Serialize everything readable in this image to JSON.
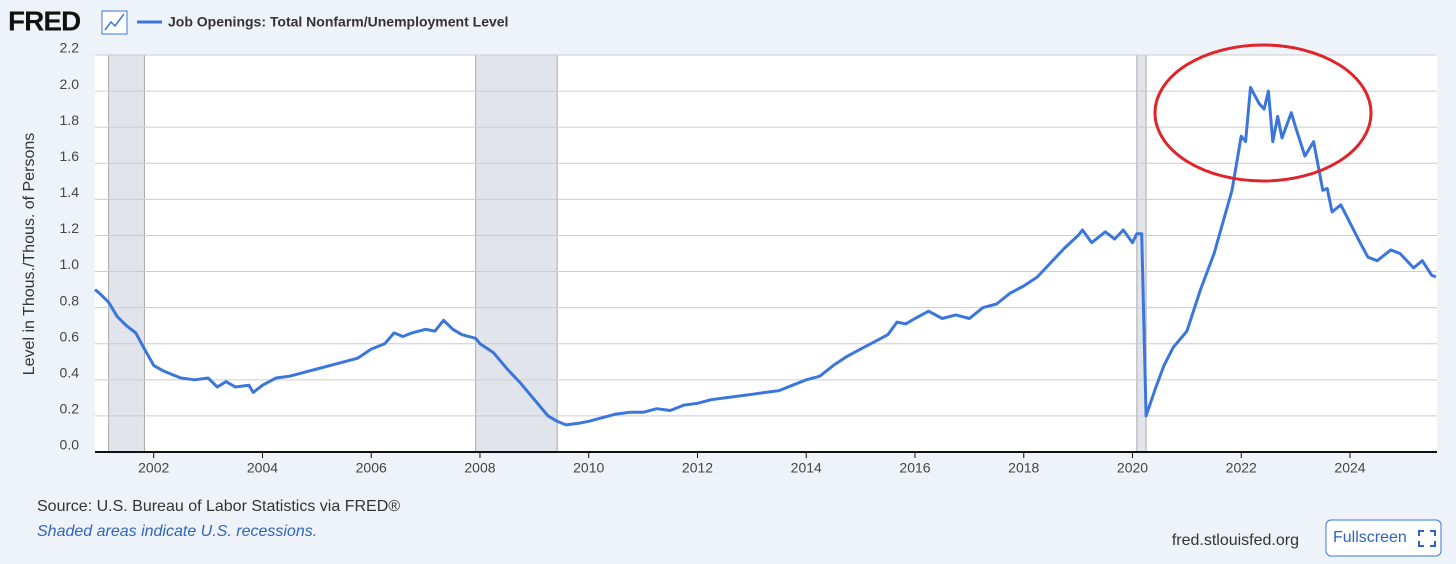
{
  "chart_data": {
    "type": "line",
    "logo": "FRED",
    "y_label": "Level in Thous./Thous. of Persons",
    "source": "Source: U.S. Bureau of Labor Statistics via FRED®",
    "note": "Shaded areas indicate U.S. recessions.",
    "site": "fred.stlouisfed.org",
    "button": "Fullscreen",
    "grid": true,
    "xlim": [
      2000.92,
      2025.6
    ],
    "ylim": [
      0,
      2.2
    ],
    "xticks": [
      2002,
      2004,
      2006,
      2008,
      2010,
      2012,
      2014,
      2016,
      2018,
      2020,
      2022,
      2024
    ],
    "yticks": [
      {
        "value": 0,
        "label": "0.0"
      },
      0.2,
      0.4,
      0.6,
      0.8,
      {
        "value": 1,
        "label": "1.0"
      },
      1.2,
      1.4,
      1.6,
      1.8,
      {
        "value": 2,
        "label": "2.0"
      },
      2.2
    ],
    "recessions": [
      [
        2001.17,
        2001.83
      ],
      [
        2007.92,
        2009.42
      ],
      [
        2020.08,
        2020.25
      ]
    ],
    "x": [
      2000.92,
      2001.0,
      2001.17,
      2001.33,
      2001.5,
      2001.67,
      2001.83,
      2002.0,
      2002.17,
      2002.33,
      2002.5,
      2002.75,
      2003.0,
      2003.17,
      2003.33,
      2003.5,
      2003.75,
      2003.83,
      2004.0,
      2004.25,
      2004.5,
      2004.75,
      2005.0,
      2005.25,
      2005.5,
      2005.75,
      2006.0,
      2006.25,
      2006.42,
      2006.58,
      2006.75,
      2007.0,
      2007.17,
      2007.33,
      2007.5,
      2007.67,
      2007.92,
      2008.0,
      2008.25,
      2008.5,
      2008.75,
      2009.0,
      2009.25,
      2009.42,
      2009.58,
      2009.83,
      2010.0,
      2010.25,
      2010.5,
      2010.75,
      2011.0,
      2011.25,
      2011.5,
      2011.75,
      2012.0,
      2012.25,
      2012.5,
      2012.75,
      2013.0,
      2013.25,
      2013.5,
      2013.75,
      2014.0,
      2014.25,
      2014.5,
      2014.75,
      2015.0,
      2015.25,
      2015.5,
      2015.67,
      2015.83,
      2016.0,
      2016.25,
      2016.5,
      2016.75,
      2017.0,
      2017.25,
      2017.5,
      2017.75,
      2018.0,
      2018.25,
      2018.5,
      2018.75,
      2019.0,
      2019.08,
      2019.25,
      2019.5,
      2019.67,
      2019.83,
      2020.0,
      2020.08,
      2020.17,
      2020.25,
      2020.42,
      2020.58,
      2020.75,
      2021.0,
      2021.25,
      2021.5,
      2021.67,
      2021.83,
      2022.0,
      2022.08,
      2022.17,
      2022.33,
      2022.42,
      2022.5,
      2022.58,
      2022.67,
      2022.75,
      2022.92,
      2023.0,
      2023.17,
      2023.33,
      2023.5,
      2023.58,
      2023.67,
      2023.83,
      2024.0,
      2024.17,
      2024.33,
      2024.5,
      2024.75,
      2024.92,
      2025.17,
      2025.33,
      2025.5,
      2025.58
    ],
    "series": [
      {
        "name": "Job Openings: Total Nonfarm/Unemployment Level",
        "color": "#3a76dc",
        "values": [
          0.9,
          0.88,
          0.83,
          0.75,
          0.7,
          0.66,
          0.57,
          0.48,
          0.45,
          0.43,
          0.41,
          0.4,
          0.41,
          0.36,
          0.39,
          0.36,
          0.37,
          0.33,
          0.37,
          0.41,
          0.42,
          0.44,
          0.46,
          0.48,
          0.5,
          0.52,
          0.57,
          0.6,
          0.66,
          0.64,
          0.66,
          0.68,
          0.67,
          0.73,
          0.68,
          0.65,
          0.63,
          0.6,
          0.55,
          0.46,
          0.38,
          0.29,
          0.2,
          0.17,
          0.15,
          0.16,
          0.17,
          0.19,
          0.21,
          0.22,
          0.22,
          0.24,
          0.23,
          0.26,
          0.27,
          0.29,
          0.3,
          0.31,
          0.32,
          0.33,
          0.34,
          0.37,
          0.4,
          0.42,
          0.48,
          0.53,
          0.57,
          0.61,
          0.65,
          0.72,
          0.71,
          0.74,
          0.78,
          0.74,
          0.76,
          0.74,
          0.8,
          0.82,
          0.88,
          0.92,
          0.97,
          1.05,
          1.13,
          1.2,
          1.23,
          1.16,
          1.22,
          1.18,
          1.23,
          1.16,
          1.21,
          1.21,
          0.2,
          0.35,
          0.48,
          0.58,
          0.67,
          0.9,
          1.1,
          1.28,
          1.45,
          1.75,
          1.72,
          2.02,
          1.93,
          1.9,
          2.0,
          1.72,
          1.86,
          1.74,
          1.88,
          1.8,
          1.64,
          1.72,
          1.45,
          1.46,
          1.33,
          1.37,
          1.27,
          1.17,
          1.08,
          1.06,
          1.12,
          1.1,
          1.02,
          1.06,
          0.98,
          0.97
        ]
      }
    ]
  }
}
